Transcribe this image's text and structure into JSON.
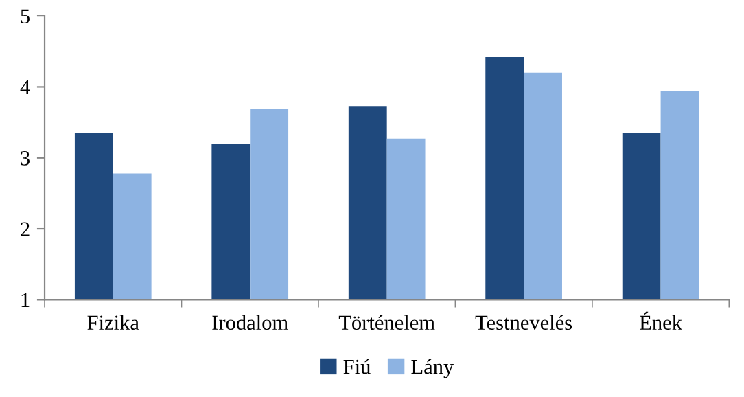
{
  "chart_data": {
    "type": "bar",
    "categories": [
      "Fizika",
      "Irodalom",
      "Történelem",
      "Testnevelés",
      "Ének"
    ],
    "series": [
      {
        "name": "Fiú",
        "color": "#1f497d",
        "values": [
          3.35,
          3.19,
          3.72,
          4.42,
          3.35
        ]
      },
      {
        "name": "Lány",
        "color": "#8db3e2",
        "values": [
          2.78,
          3.69,
          3.27,
          4.2,
          3.94
        ]
      }
    ],
    "ylim": [
      1,
      5
    ],
    "yticks": [
      1,
      2,
      3,
      4,
      5
    ],
    "grid": false,
    "legend": "bottom"
  }
}
